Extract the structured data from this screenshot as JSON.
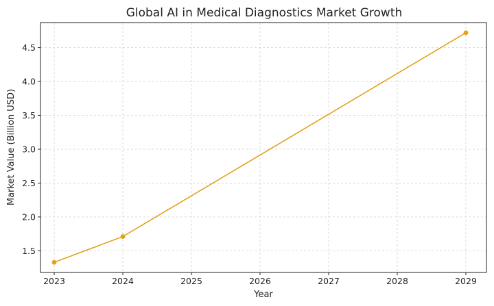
{
  "chart_data": {
    "type": "line",
    "title": "Global AI in Medical Diagnostics Market Growth",
    "xlabel": "Year",
    "ylabel": "Market Value (Billion USD)",
    "x": [
      2023,
      2024,
      2029
    ],
    "series": [
      {
        "values": [
          1.33,
          1.71,
          4.72
        ]
      }
    ],
    "xlim": [
      2022.8,
      2029.3
    ],
    "ylim": [
      1.18,
      4.87
    ],
    "xticks": [
      "2023",
      "2024",
      "2025",
      "2026",
      "2027",
      "2028",
      "2029"
    ],
    "yticks": [
      "1.5",
      "2.0",
      "2.5",
      "3.0",
      "3.5",
      "4.0",
      "4.5"
    ],
    "grid": true,
    "color": "#E3A21A"
  }
}
